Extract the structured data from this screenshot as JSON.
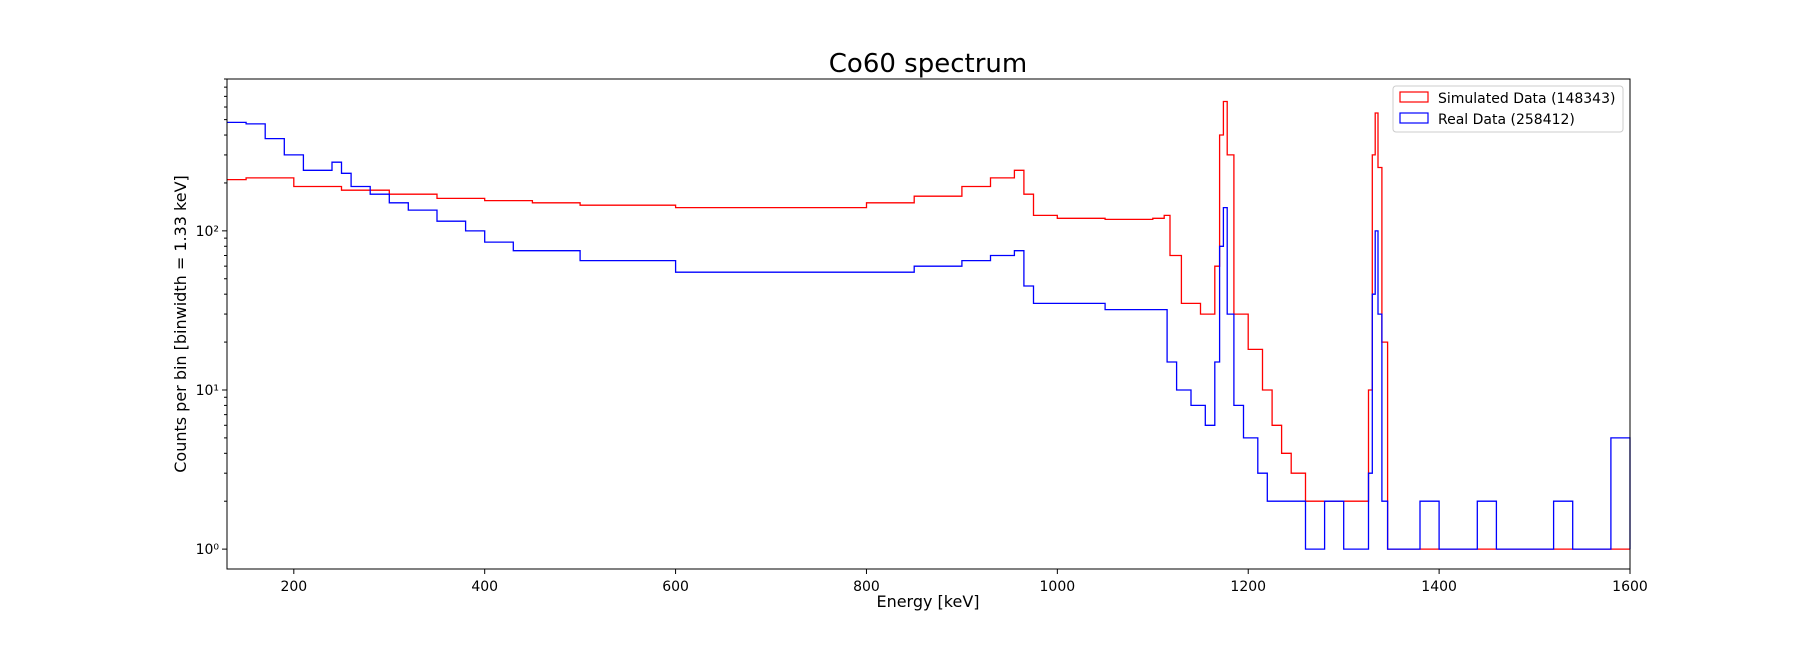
{
  "chart_data": {
    "type": "line",
    "title": "Co60 spectrum",
    "xlabel": "Energy [keV]",
    "ylabel": "Counts per bin [binwidth = 1.33 keV]",
    "x_scale": "linear",
    "y_scale": "log",
    "xlim": [
      130,
      1600
    ],
    "ylim": [
      0.75,
      900
    ],
    "x_ticks": [
      200,
      400,
      600,
      800,
      1000,
      1200,
      1400,
      1600
    ],
    "x_tick_labels": [
      "200",
      "400",
      "600",
      "800",
      "1000",
      "1200",
      "1400",
      "1600"
    ],
    "y_ticks": [
      1,
      10,
      100
    ],
    "y_tick_labels": [
      "10⁰",
      "10¹",
      "10²"
    ],
    "grid": false,
    "legend_position": "top-right",
    "series": [
      {
        "name": "Simulated Data (148343)",
        "color": "#ff0000",
        "style": "step",
        "x": [
          130,
          150,
          200,
          250,
          300,
          350,
          400,
          450,
          500,
          600,
          700,
          800,
          850,
          900,
          930,
          955,
          965,
          975,
          1000,
          1050,
          1100,
          1112,
          1118,
          1130,
          1150,
          1165,
          1170,
          1174,
          1178,
          1185,
          1200,
          1215,
          1225,
          1235,
          1245,
          1260,
          1280,
          1300,
          1320,
          1326,
          1330,
          1333,
          1336,
          1340,
          1346
        ],
        "y": [
          210,
          215,
          190,
          180,
          170,
          160,
          155,
          150,
          145,
          140,
          140,
          150,
          165,
          190,
          215,
          240,
          170,
          125,
          120,
          118,
          120,
          125,
          70,
          35,
          30,
          60,
          400,
          650,
          300,
          30,
          18,
          10,
          6,
          4,
          3,
          2,
          2,
          2,
          2,
          10,
          300,
          550,
          250,
          20,
          1
        ]
      },
      {
        "name": "Real Data (258412)",
        "color": "#0000ff",
        "style": "step",
        "x": [
          130,
          150,
          170,
          190,
          210,
          230,
          240,
          250,
          260,
          280,
          300,
          320,
          350,
          380,
          400,
          430,
          500,
          600,
          700,
          800,
          850,
          900,
          930,
          955,
          965,
          975,
          1000,
          1050,
          1100,
          1115,
          1125,
          1140,
          1155,
          1165,
          1170,
          1174,
          1178,
          1185,
          1195,
          1210,
          1220,
          1230,
          1240,
          1260,
          1280,
          1300,
          1320,
          1326,
          1330,
          1333,
          1336,
          1340,
          1346,
          1360,
          1380,
          1400,
          1420,
          1440,
          1460,
          1480,
          1500,
          1520,
          1540,
          1560,
          1580,
          1600
        ],
        "y": [
          480,
          470,
          380,
          300,
          240,
          240,
          270,
          230,
          190,
          170,
          150,
          135,
          115,
          100,
          85,
          75,
          65,
          55,
          55,
          55,
          60,
          65,
          70,
          75,
          45,
          35,
          35,
          32,
          32,
          15,
          10,
          8,
          6,
          15,
          80,
          140,
          30,
          8,
          5,
          3,
          2,
          2,
          2,
          1,
          2,
          1,
          1,
          3,
          40,
          100,
          30,
          2,
          1,
          1,
          2,
          1,
          1,
          2,
          1,
          1,
          1,
          2,
          1,
          1,
          5,
          1
        ]
      }
    ]
  }
}
